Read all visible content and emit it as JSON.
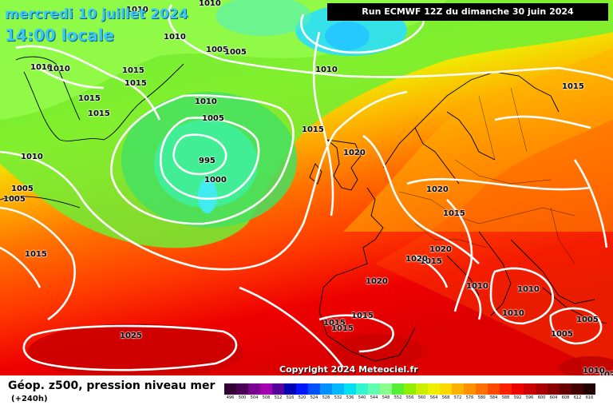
{
  "title": {
    "date": "mercredi 10 juillet 2024",
    "time": "14:00 locale"
  },
  "run_info": "Run ECMWF 12Z du dimanche 30 juin 2024",
  "copyright": "Copyright 2024 Meteociel.fr",
  "footer": {
    "field": "Géop. z500, pression niveau mer",
    "lead": "(+240h)"
  },
  "isobar_labels": [
    "1010",
    "1010",
    "1010",
    "1010",
    "1010",
    "1005",
    "1005",
    "1015",
    "1015",
    "1015",
    "1015",
    "1010",
    "1005",
    "1010",
    "995",
    "1000",
    "1015",
    "1020",
    "1015",
    "1005",
    "1005",
    "1010",
    "1015",
    "1020",
    "1015",
    "1020",
    "1020",
    "1015",
    "1020",
    "1010",
    "1010",
    "1010",
    "1005",
    "1005",
    "1015",
    "1015",
    "1015",
    "1020",
    "1025",
    "1010"
  ],
  "legend_scale": {
    "labels": [
      "496",
      "500",
      "504",
      "508",
      "512",
      "516",
      "520",
      "524",
      "528",
      "532",
      "536",
      "540",
      "544",
      "548",
      "552",
      "556",
      "560",
      "564",
      "568",
      "572",
      "576",
      "580",
      "584",
      "588",
      "592",
      "596",
      "600",
      "604",
      "608",
      "612",
      "616"
    ],
    "colors": [
      "#330033",
      "#4b0058",
      "#7a0090",
      "#a300b0",
      "#550099",
      "#0000b4",
      "#0018ff",
      "#0050ff",
      "#0090ff",
      "#00b8ff",
      "#00e0f0",
      "#35f5d0",
      "#60ffb0",
      "#8aff8a",
      "#55ee33",
      "#90ee00",
      "#ccee00",
      "#eeee00",
      "#ffd800",
      "#ffb000",
      "#ff9000",
      "#ff7000",
      "#ff4a00",
      "#ff2000",
      "#ee0000",
      "#cc0000",
      "#aa0000",
      "#880000",
      "#660000",
      "#440000",
      "#220000"
    ]
  },
  "map_colors": {
    "green": "#55ee33",
    "yellow": "#ffd800",
    "orange": "#ff7000",
    "red": "#ee0000",
    "cyan": "#35f5d0"
  }
}
